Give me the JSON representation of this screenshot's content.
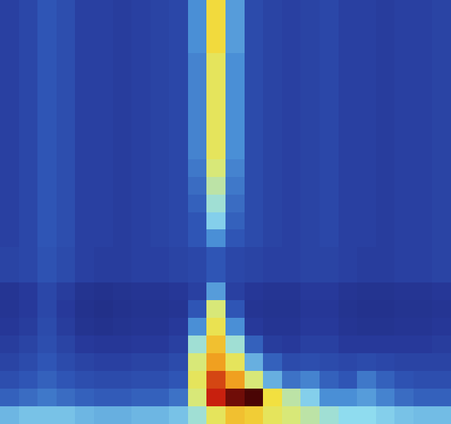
{
  "chart_data": {
    "type": "heatmap",
    "tick_labels": false,
    "color_range": [
      0,
      1
    ],
    "values": [
      [
        0.14,
        0.16,
        0.2,
        0.18,
        0.14,
        0.14,
        0.13,
        0.14,
        0.15,
        0.16,
        0.3,
        0.66,
        0.32,
        0.17,
        0.15,
        0.14,
        0.15,
        0.16,
        0.14,
        0.14,
        0.13,
        0.14,
        0.14,
        0.15
      ],
      [
        0.14,
        0.16,
        0.2,
        0.18,
        0.14,
        0.14,
        0.13,
        0.14,
        0.15,
        0.16,
        0.3,
        0.66,
        0.32,
        0.17,
        0.15,
        0.14,
        0.15,
        0.16,
        0.14,
        0.14,
        0.13,
        0.14,
        0.14,
        0.15
      ],
      [
        0.14,
        0.16,
        0.2,
        0.18,
        0.14,
        0.14,
        0.13,
        0.14,
        0.15,
        0.16,
        0.3,
        0.66,
        0.32,
        0.17,
        0.15,
        0.14,
        0.15,
        0.16,
        0.14,
        0.14,
        0.13,
        0.14,
        0.14,
        0.15
      ],
      [
        0.14,
        0.16,
        0.2,
        0.18,
        0.14,
        0.14,
        0.13,
        0.14,
        0.15,
        0.16,
        0.28,
        0.6,
        0.3,
        0.17,
        0.15,
        0.14,
        0.15,
        0.16,
        0.14,
        0.14,
        0.13,
        0.14,
        0.14,
        0.15
      ],
      [
        0.14,
        0.16,
        0.2,
        0.18,
        0.14,
        0.14,
        0.13,
        0.14,
        0.15,
        0.16,
        0.28,
        0.6,
        0.3,
        0.17,
        0.15,
        0.14,
        0.15,
        0.16,
        0.14,
        0.14,
        0.13,
        0.14,
        0.14,
        0.15
      ],
      [
        0.14,
        0.16,
        0.2,
        0.18,
        0.14,
        0.14,
        0.13,
        0.14,
        0.15,
        0.16,
        0.28,
        0.6,
        0.3,
        0.17,
        0.15,
        0.14,
        0.15,
        0.16,
        0.14,
        0.14,
        0.13,
        0.14,
        0.14,
        0.15
      ],
      [
        0.14,
        0.16,
        0.2,
        0.18,
        0.14,
        0.14,
        0.13,
        0.14,
        0.15,
        0.16,
        0.28,
        0.6,
        0.3,
        0.17,
        0.15,
        0.14,
        0.15,
        0.16,
        0.14,
        0.14,
        0.13,
        0.14,
        0.14,
        0.15
      ],
      [
        0.14,
        0.16,
        0.2,
        0.18,
        0.14,
        0.14,
        0.13,
        0.14,
        0.15,
        0.16,
        0.28,
        0.6,
        0.3,
        0.17,
        0.15,
        0.14,
        0.15,
        0.16,
        0.14,
        0.14,
        0.13,
        0.14,
        0.14,
        0.15
      ],
      [
        0.14,
        0.16,
        0.2,
        0.18,
        0.14,
        0.14,
        0.13,
        0.14,
        0.15,
        0.16,
        0.28,
        0.6,
        0.3,
        0.17,
        0.15,
        0.14,
        0.15,
        0.16,
        0.14,
        0.14,
        0.13,
        0.14,
        0.14,
        0.15
      ],
      [
        0.14,
        0.16,
        0.2,
        0.18,
        0.14,
        0.14,
        0.13,
        0.14,
        0.15,
        0.16,
        0.26,
        0.55,
        0.28,
        0.17,
        0.15,
        0.14,
        0.15,
        0.16,
        0.14,
        0.14,
        0.13,
        0.14,
        0.14,
        0.15
      ],
      [
        0.14,
        0.16,
        0.2,
        0.18,
        0.14,
        0.14,
        0.13,
        0.14,
        0.15,
        0.16,
        0.24,
        0.5,
        0.26,
        0.17,
        0.15,
        0.14,
        0.15,
        0.16,
        0.14,
        0.14,
        0.13,
        0.14,
        0.14,
        0.15
      ],
      [
        0.14,
        0.16,
        0.2,
        0.18,
        0.14,
        0.14,
        0.13,
        0.14,
        0.15,
        0.16,
        0.22,
        0.45,
        0.24,
        0.17,
        0.15,
        0.14,
        0.15,
        0.16,
        0.14,
        0.14,
        0.13,
        0.14,
        0.14,
        0.15
      ],
      [
        0.14,
        0.16,
        0.2,
        0.18,
        0.14,
        0.14,
        0.13,
        0.14,
        0.15,
        0.16,
        0.2,
        0.4,
        0.22,
        0.17,
        0.15,
        0.14,
        0.15,
        0.16,
        0.14,
        0.14,
        0.13,
        0.14,
        0.14,
        0.15
      ],
      [
        0.14,
        0.16,
        0.2,
        0.18,
        0.14,
        0.14,
        0.13,
        0.14,
        0.15,
        0.16,
        0.2,
        0.3,
        0.2,
        0.17,
        0.15,
        0.14,
        0.15,
        0.16,
        0.14,
        0.14,
        0.13,
        0.14,
        0.14,
        0.15
      ],
      [
        0.15,
        0.16,
        0.19,
        0.17,
        0.14,
        0.13,
        0.13,
        0.14,
        0.14,
        0.15,
        0.16,
        0.2,
        0.16,
        0.15,
        0.14,
        0.14,
        0.15,
        0.15,
        0.14,
        0.13,
        0.13,
        0.14,
        0.14,
        0.15
      ],
      [
        0.15,
        0.16,
        0.19,
        0.17,
        0.14,
        0.13,
        0.13,
        0.14,
        0.14,
        0.15,
        0.16,
        0.2,
        0.16,
        0.15,
        0.14,
        0.14,
        0.15,
        0.15,
        0.14,
        0.13,
        0.13,
        0.14,
        0.14,
        0.15
      ],
      [
        0.1,
        0.12,
        0.16,
        0.13,
        0.09,
        0.08,
        0.09,
        0.1,
        0.1,
        0.11,
        0.14,
        0.32,
        0.14,
        0.11,
        0.1,
        0.1,
        0.12,
        0.12,
        0.1,
        0.09,
        0.09,
        0.1,
        0.1,
        0.11
      ],
      [
        0.1,
        0.12,
        0.16,
        0.12,
        0.08,
        0.07,
        0.08,
        0.09,
        0.09,
        0.1,
        0.2,
        0.55,
        0.2,
        0.1,
        0.09,
        0.09,
        0.11,
        0.11,
        0.09,
        0.08,
        0.08,
        0.09,
        0.09,
        0.1
      ],
      [
        0.11,
        0.13,
        0.17,
        0.13,
        0.09,
        0.08,
        0.09,
        0.1,
        0.1,
        0.12,
        0.3,
        0.62,
        0.3,
        0.12,
        0.1,
        0.1,
        0.12,
        0.12,
        0.1,
        0.09,
        0.09,
        0.1,
        0.1,
        0.11
      ],
      [
        0.13,
        0.15,
        0.18,
        0.15,
        0.12,
        0.11,
        0.11,
        0.12,
        0.12,
        0.14,
        0.45,
        0.7,
        0.45,
        0.22,
        0.13,
        0.12,
        0.14,
        0.14,
        0.12,
        0.12,
        0.12,
        0.12,
        0.12,
        0.13
      ],
      [
        0.15,
        0.17,
        0.2,
        0.17,
        0.15,
        0.14,
        0.14,
        0.15,
        0.15,
        0.17,
        0.55,
        0.75,
        0.6,
        0.35,
        0.22,
        0.17,
        0.18,
        0.17,
        0.16,
        0.17,
        0.16,
        0.15,
        0.15,
        0.15
      ],
      [
        0.18,
        0.2,
        0.22,
        0.2,
        0.18,
        0.17,
        0.17,
        0.18,
        0.18,
        0.2,
        0.6,
        0.82,
        0.75,
        0.55,
        0.35,
        0.25,
        0.28,
        0.22,
        0.2,
        0.26,
        0.22,
        0.19,
        0.18,
        0.18
      ],
      [
        0.22,
        0.24,
        0.26,
        0.24,
        0.22,
        0.21,
        0.21,
        0.22,
        0.22,
        0.25,
        0.55,
        0.85,
        0.92,
        0.95,
        0.65,
        0.5,
        0.4,
        0.3,
        0.3,
        0.32,
        0.28,
        0.24,
        0.22,
        0.22
      ],
      [
        0.36,
        0.38,
        0.38,
        0.38,
        0.36,
        0.35,
        0.35,
        0.36,
        0.36,
        0.38,
        0.45,
        0.6,
        0.7,
        0.68,
        0.6,
        0.55,
        0.5,
        0.45,
        0.42,
        0.42,
        0.4,
        0.38,
        0.37,
        0.37
      ]
    ]
  }
}
